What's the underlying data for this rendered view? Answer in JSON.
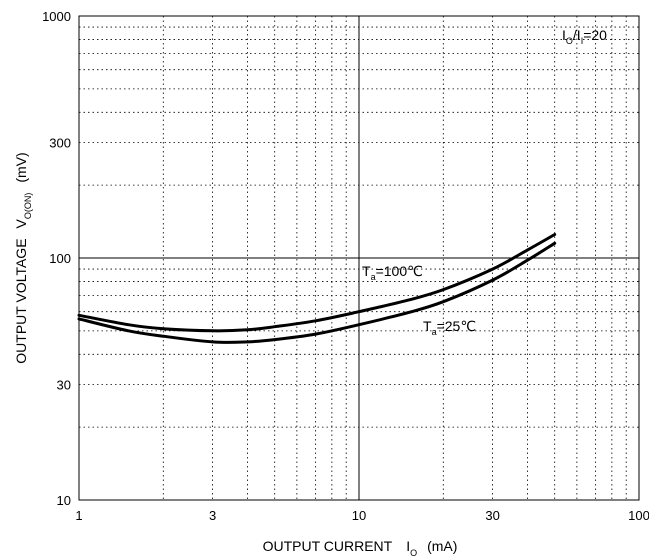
{
  "chart_data": {
    "type": "line",
    "title": "",
    "xlabel": {
      "main": "OUTPUT CURRENT",
      "symbol": "I",
      "subscript": "O",
      "unit": "(mA)"
    },
    "ylabel": {
      "main": "OUTPUT VOLTAGE",
      "symbol": "V",
      "subscript": "O(ON)",
      "unit": "(mV)"
    },
    "xscale": "log",
    "yscale": "log",
    "xlim": [
      1,
      100
    ],
    "ylim": [
      10,
      1000
    ],
    "x_ticks": [
      1,
      3,
      10,
      30,
      100
    ],
    "x_tick_labels": [
      "1",
      "3",
      "10",
      "30",
      "100"
    ],
    "y_ticks": [
      10,
      30,
      100,
      300,
      1000
    ],
    "y_tick_labels": [
      "10",
      "30",
      "100",
      "300",
      "1000"
    ],
    "grid": "dotted",
    "condition": {
      "symbol": "I",
      "sub1": "O",
      "sep": "/I",
      "sub2": "I",
      "value": "=20"
    },
    "series": [
      {
        "name": "Ta=100℃",
        "label_prefix": "T",
        "label_sub": "a",
        "label_value": "=100℃",
        "x": [
          1,
          1.5,
          2,
          3,
          4,
          5,
          7,
          10,
          15,
          20,
          30,
          40,
          50
        ],
        "y": [
          58,
          53,
          51,
          50,
          50.5,
          52,
          55,
          60,
          67,
          74,
          90,
          108,
          125
        ]
      },
      {
        "name": "Ta=25℃",
        "label_prefix": "T",
        "label_sub": "a",
        "label_value": "=25℃",
        "x": [
          1,
          1.5,
          2,
          3,
          4,
          5,
          7,
          10,
          15,
          20,
          30,
          40,
          50
        ],
        "y": [
          56,
          50,
          47.5,
          45,
          45,
          46,
          48.5,
          53,
          59.5,
          66,
          81,
          98,
          115
        ]
      }
    ]
  }
}
